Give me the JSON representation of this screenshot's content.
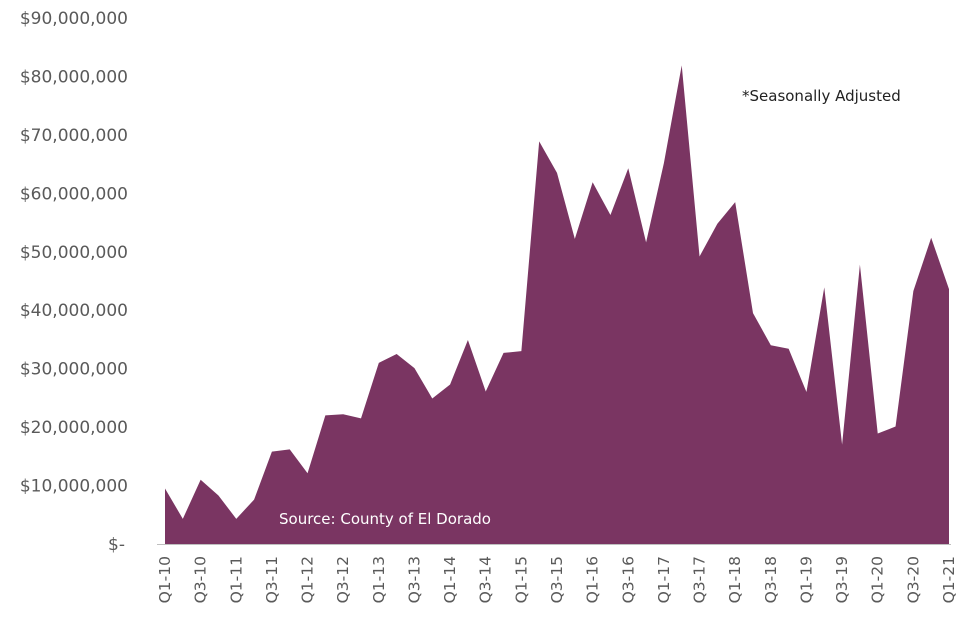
{
  "chart_data": {
    "type": "area",
    "title": "",
    "xlabel": "",
    "ylabel": "",
    "ylim": [
      0,
      90000000
    ],
    "grid": false,
    "legend": "none",
    "y_ticks": [
      {
        "value": 0,
        "label": "$-"
      },
      {
        "value": 10000000,
        "label": "$10,000,000"
      },
      {
        "value": 20000000,
        "label": "$20,000,000"
      },
      {
        "value": 30000000,
        "label": "$30,000,000"
      },
      {
        "value": 40000000,
        "label": "$40,000,000"
      },
      {
        "value": 50000000,
        "label": "$50,000,000"
      },
      {
        "value": 60000000,
        "label": "$60,000,000"
      },
      {
        "value": 70000000,
        "label": "$70,000,000"
      },
      {
        "value": 80000000,
        "label": "$80,000,000"
      },
      {
        "value": 90000000,
        "label": "$90,000,000"
      }
    ],
    "x": [
      "Q1-10",
      "Q2-10",
      "Q3-10",
      "Q4-10",
      "Q1-11",
      "Q2-11",
      "Q3-11",
      "Q4-11",
      "Q1-12",
      "Q2-12",
      "Q3-12",
      "Q4-12",
      "Q1-13",
      "Q2-13",
      "Q3-13",
      "Q4-13",
      "Q1-14",
      "Q2-14",
      "Q3-14",
      "Q4-14",
      "Q1-15",
      "Q2-15",
      "Q3-15",
      "Q4-15",
      "Q1-16",
      "Q2-16",
      "Q3-16",
      "Q4-16",
      "Q1-17",
      "Q2-17",
      "Q3-17",
      "Q4-17",
      "Q1-18",
      "Q2-18",
      "Q3-18",
      "Q4-18",
      "Q1-19",
      "Q2-19",
      "Q3-19",
      "Q4-19",
      "Q1-20",
      "Q2-20",
      "Q3-20",
      "Q4-20",
      "Q1-21"
    ],
    "x_tick_labels": [
      "Q1-10",
      "Q3-10",
      "Q1-11",
      "Q3-11",
      "Q1-12",
      "Q3-12",
      "Q1-13",
      "Q3-13",
      "Q1-14",
      "Q3-14",
      "Q1-15",
      "Q3-15",
      "Q1-16",
      "Q3-16",
      "Q1-17",
      "Q3-17",
      "Q1-18",
      "Q3-18",
      "Q1-19",
      "Q3-19",
      "Q1-20",
      "Q3-20",
      "Q1-21"
    ],
    "series": [
      {
        "color": "#7a3562",
        "values": [
          9500000,
          4300000,
          11000000,
          8300000,
          4300000,
          7600000,
          15800000,
          16200000,
          12100000,
          22000000,
          22200000,
          21500000,
          31000000,
          32500000,
          30100000,
          24900000,
          27300000,
          34900000,
          26100000,
          32700000,
          33000000,
          68900000,
          63500000,
          52200000,
          61900000,
          56300000,
          64300000,
          51600000,
          65200000,
          81900000,
          49200000,
          54800000,
          58500000,
          39500000,
          34000000,
          33400000,
          26000000,
          43900000,
          17000000,
          47800000,
          18900000,
          20100000,
          43300000,
          52400000,
          43600000
        ]
      }
    ],
    "annotations": [
      {
        "text": "*Seasonally Adjusted"
      },
      {
        "text": "Source: County of El Dorado"
      }
    ]
  }
}
